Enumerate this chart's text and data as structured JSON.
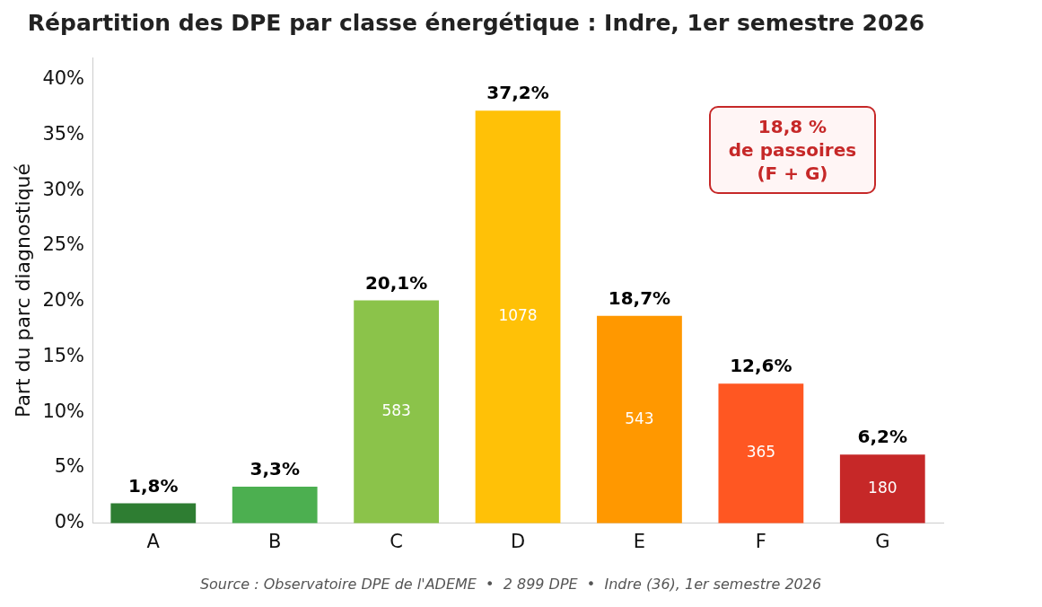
{
  "chart_data": {
    "type": "bar",
    "title": "Répartition des DPE par classe énergétique : Indre, 1er semestre 2026",
    "ylabel": "Part du parc diagnostiqué",
    "categories": [
      "A",
      "B",
      "C",
      "D",
      "E",
      "F",
      "G"
    ],
    "values": [
      1.8,
      3.3,
      20.1,
      37.2,
      18.7,
      12.6,
      6.2
    ],
    "colors": [
      "#2e7d32",
      "#4caf50",
      "#8bc34a",
      "#ffc107",
      "#ff9800",
      "#ff5722",
      "#c62828"
    ],
    "value_labels": [
      "1,8%",
      "3,3%",
      "20,1%",
      "37,2%",
      "18,7%",
      "12,6%",
      "6,2%"
    ],
    "ylim": [
      0,
      42
    ],
    "yticks": [
      {
        "value": 0,
        "label": "0%"
      },
      {
        "value": 5,
        "label": "5%"
      },
      {
        "value": 10,
        "label": "10%"
      },
      {
        "value": 15,
        "label": "15%"
      },
      {
        "value": 20,
        "label": "20%"
      },
      {
        "value": 25,
        "label": "25%"
      },
      {
        "value": 30,
        "label": "30%"
      },
      {
        "value": 35,
        "label": "35%"
      },
      {
        "value": 40,
        "label": "40%"
      }
    ],
    "grid": false,
    "legend": false,
    "annotations": [
      "18,8 %\nde passoires\n(F + G)",
      "583",
      "1078",
      "543",
      "365",
      "180",
      "Source : Observatoire DPE de l'ADEME  •  2 899 DPE  •  Indre (36), 1er semestre 2026"
    ]
  }
}
